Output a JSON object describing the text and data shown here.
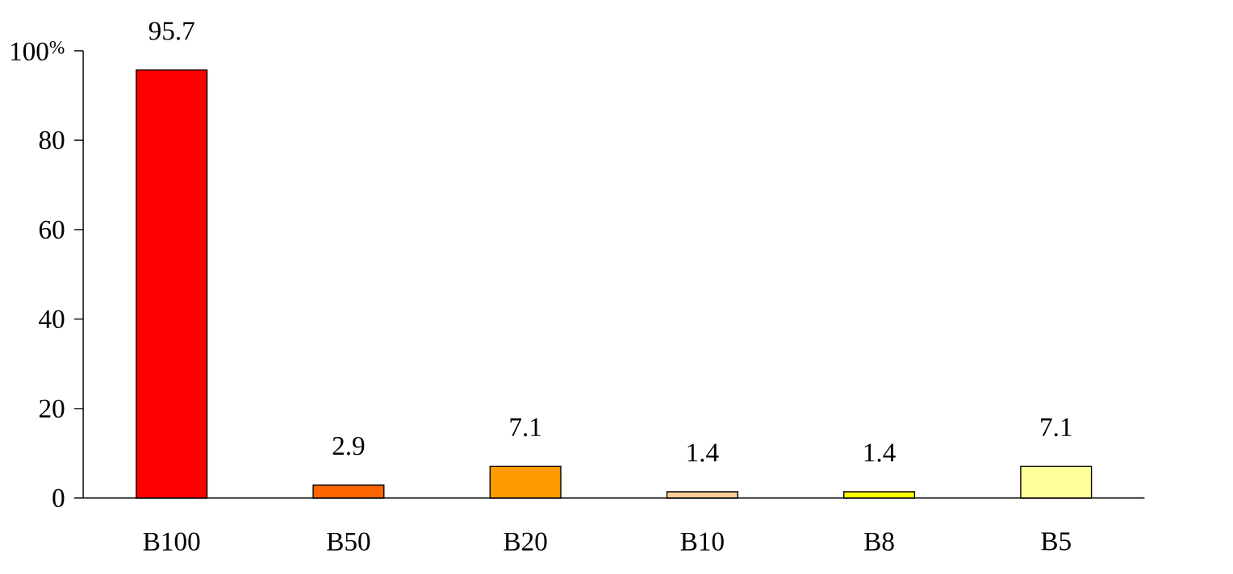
{
  "chart_data": {
    "type": "bar",
    "categories": [
      "B100",
      "B50",
      "B20",
      "B10",
      "B8",
      "B5"
    ],
    "values": [
      95.7,
      2.9,
      7.1,
      1.4,
      1.4,
      7.1
    ],
    "colors": [
      "#ff0000",
      "#ff6600",
      "#ff9900",
      "#ffcc99",
      "#ffff00",
      "#ffff99"
    ],
    "ylim": [
      0,
      100
    ],
    "yticks": [
      0,
      20,
      40,
      60,
      80,
      {
        "value": 100,
        "label": "100$^{%}$"
      }
    ],
    "data_labels": true
  }
}
